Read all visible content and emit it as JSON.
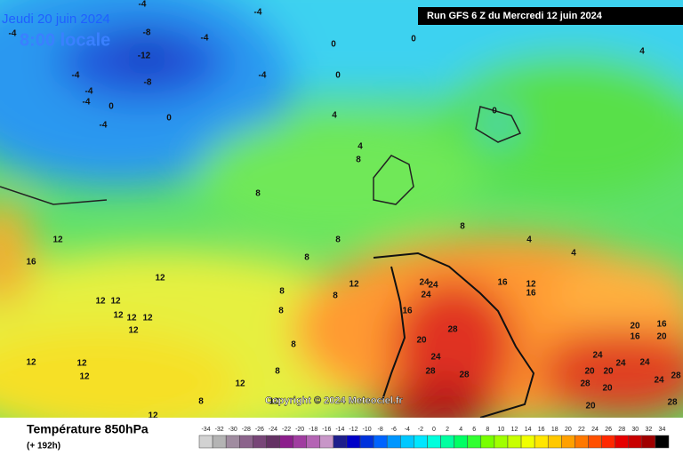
{
  "header": {
    "date": "Jeudi 20 juin 2024",
    "time": "8:00 locale",
    "run": "Run GFS 6 Z du Mercredi 12 juin 2024"
  },
  "copyright": "Copyright © 2024 Meteociel.fr",
  "footer": {
    "title": "Température 850hPa",
    "lead": "(+ 192h)"
  },
  "scale": {
    "values": [
      -34,
      -32,
      -30,
      -28,
      -26,
      -24,
      -22,
      -20,
      -18,
      -16,
      -14,
      -12,
      -10,
      -8,
      -6,
      -4,
      -2,
      0,
      2,
      4,
      6,
      8,
      10,
      12,
      14,
      16,
      18,
      20,
      22,
      24,
      26,
      28,
      30,
      32,
      34
    ],
    "colors": [
      "#d2d2d2",
      "#b4b4b4",
      "#a08ca0",
      "#8c648c",
      "#784678",
      "#643264",
      "#8c1e8c",
      "#a03ca0",
      "#b464b4",
      "#c896c8",
      "#1e1e8c",
      "#0000c8",
      "#0032dc",
      "#0064ff",
      "#0096ff",
      "#00c8ff",
      "#00e6ff",
      "#00ffdc",
      "#00ffa0",
      "#00ff64",
      "#32ff32",
      "#78ff00",
      "#a0ff00",
      "#c8ff00",
      "#f0ff00",
      "#ffe600",
      "#ffc800",
      "#ffa000",
      "#ff7800",
      "#ff5000",
      "#ff2800",
      "#e60000",
      "#c80000",
      "#a00000",
      "#000000"
    ]
  },
  "contour_labels": [
    -4,
    -4,
    -8,
    -4,
    -4,
    -12,
    -8,
    -4,
    -4,
    -4,
    0,
    0,
    -4,
    -4,
    0,
    0,
    0,
    4,
    0,
    4,
    4,
    8,
    8,
    8,
    8,
    4,
    4,
    12,
    16,
    12,
    12,
    12,
    12,
    12,
    12,
    12,
    12,
    12,
    12,
    12,
    12,
    12,
    8,
    8,
    8,
    8,
    8,
    8,
    8,
    12,
    16,
    24,
    24,
    24,
    20,
    28,
    24,
    28,
    28,
    16,
    12,
    16,
    16,
    20,
    20,
    16,
    24,
    24,
    24,
    20,
    20,
    28,
    20,
    24,
    28,
    20,
    28
  ]
}
